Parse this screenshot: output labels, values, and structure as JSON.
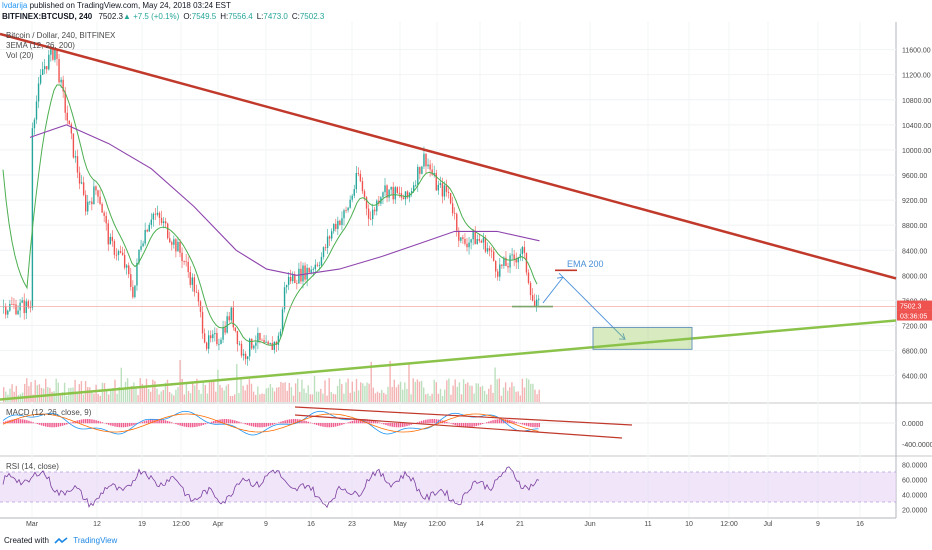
{
  "header": {
    "author": "lvdarija",
    "published": "published on TradingView.com, May 24, 2018 03:24 EST",
    "symbol": "BITFINEX:BTCUSD, 240",
    "quote": [
      {
        "text": "7502.3",
        "color": "#131722"
      },
      {
        "text": "▲ +7.5 (+0.1%)",
        "color": "#26a69a"
      },
      {
        "text": "O:",
        "color": "#131722"
      },
      {
        "text": "7549.5",
        "color": "#26a69a"
      },
      {
        "text": "H:",
        "color": "#131722"
      },
      {
        "text": "7556.4",
        "color": "#26a69a"
      },
      {
        "text": "L:",
        "color": "#131722"
      },
      {
        "text": "7473.0",
        "color": "#26a69a"
      },
      {
        "text": "C:",
        "color": "#131722"
      },
      {
        "text": "7502.3",
        "color": "#26a69a"
      }
    ]
  },
  "pane_labels": {
    "main_title": "Bitcoin / Dollar, 240, BITFINEX",
    "ema": "3EMA (12, 26, 200)",
    "vol": "Vol (20)",
    "macd": "MACD (12, 26, close, 9)",
    "rsi": "RSI (14, close)"
  },
  "annotation": "EMA 200",
  "price_tags": {
    "last": "7502.3",
    "countdown": "03:36:05"
  },
  "colors": {
    "up": "#26a69a",
    "down": "#ef5350",
    "ema200": "#8e44ad",
    "ema_fast": "#4caf50",
    "trend_top": "#c0392b",
    "trend_bottom": "#8bc34a",
    "annotation": "#4a90d9",
    "rsi": "#7b3fa0",
    "rsi_band": "#e8d5f5",
    "macd_hist": "#e91e63"
  },
  "footer": {
    "created": "Created with",
    "brand": "TradingView"
  },
  "chart_data": {
    "type": "candlestick",
    "title": "Bitcoin / Dollar, 240, BITFINEX",
    "y_ticks": [
      6400,
      6800,
      7200,
      7600,
      8000,
      8400,
      8800,
      9200,
      9600,
      10000,
      10400,
      10800,
      11200,
      11600
    ],
    "ylim": [
      5980,
      12040
    ],
    "x_ticks": [
      "Mar",
      "12",
      "19",
      "12:00",
      "Apr",
      "9",
      "16",
      "23",
      "May",
      "12:00",
      "14",
      "21",
      "Jun",
      "11",
      "10",
      "12:00",
      "Jul",
      "9",
      "16"
    ],
    "close_path": [
      [
        "Mar 1",
        10300
      ],
      [
        "Mar 3",
        11300
      ],
      [
        "Mar 5",
        11600
      ],
      [
        "Mar 6",
        11000
      ],
      [
        "Mar 8",
        10000
      ],
      [
        "Mar 10",
        9100
      ],
      [
        "Mar 12",
        9400
      ],
      [
        "Mar 14",
        8500
      ],
      [
        "Mar 16",
        8300
      ],
      [
        "Mar 18",
        7700
      ],
      [
        "Mar 19",
        8500
      ],
      [
        "Mar 21",
        9000
      ],
      [
        "Mar 23",
        8800
      ],
      [
        "Mar 26",
        8300
      ],
      [
        "Mar 28",
        7800
      ],
      [
        "Mar 30",
        6900
      ],
      [
        "Apr 1",
        7000
      ],
      [
        "Apr 3",
        7400
      ],
      [
        "Apr 5",
        6700
      ],
      [
        "Apr 7",
        7000
      ],
      [
        "Apr 9",
        6800
      ],
      [
        "Apr 11",
        7000
      ],
      [
        "Apr 12",
        7900
      ],
      [
        "Apr 14",
        8000
      ],
      [
        "Apr 16",
        8100
      ],
      [
        "Apr 18",
        8300
      ],
      [
        "Apr 20",
        8800
      ],
      [
        "Apr 22",
        9000
      ],
      [
        "Apr 24",
        9600
      ],
      [
        "Apr 26",
        8900
      ],
      [
        "Apr 28",
        9400
      ],
      [
        "Apr 30",
        9300
      ],
      [
        "May 2",
        9200
      ],
      [
        "May 4",
        9700
      ],
      [
        "May 5",
        9900
      ],
      [
        "May 7",
        9400
      ],
      [
        "May 9",
        9300
      ],
      [
        "May 11",
        8500
      ],
      [
        "May 13",
        8600
      ],
      [
        "May 15",
        8500
      ],
      [
        "May 17",
        8100
      ],
      [
        "May 19",
        8200
      ],
      [
        "May 21",
        8400
      ],
      [
        "May 22",
        8000
      ],
      [
        "May 23",
        7500
      ],
      [
        "May 24",
        7502.3
      ]
    ],
    "ema200_path": [
      [
        "Mar 1",
        10200
      ],
      [
        "Mar 7",
        10400
      ],
      [
        "Mar 14",
        10100
      ],
      [
        "Mar 21",
        9700
      ],
      [
        "Mar 28",
        9100
      ],
      [
        "Apr 4",
        8400
      ],
      [
        "Apr 9",
        8100
      ],
      [
        "Apr 14",
        8000
      ],
      [
        "Apr 21",
        8100
      ],
      [
        "Apr 28",
        8300
      ],
      [
        "May 4",
        8500
      ],
      [
        "May 10",
        8700
      ],
      [
        "May 17",
        8700
      ],
      [
        "May 24",
        8550
      ]
    ],
    "last_price": 7502.3,
    "annotations": [
      "EMA 200"
    ]
  }
}
